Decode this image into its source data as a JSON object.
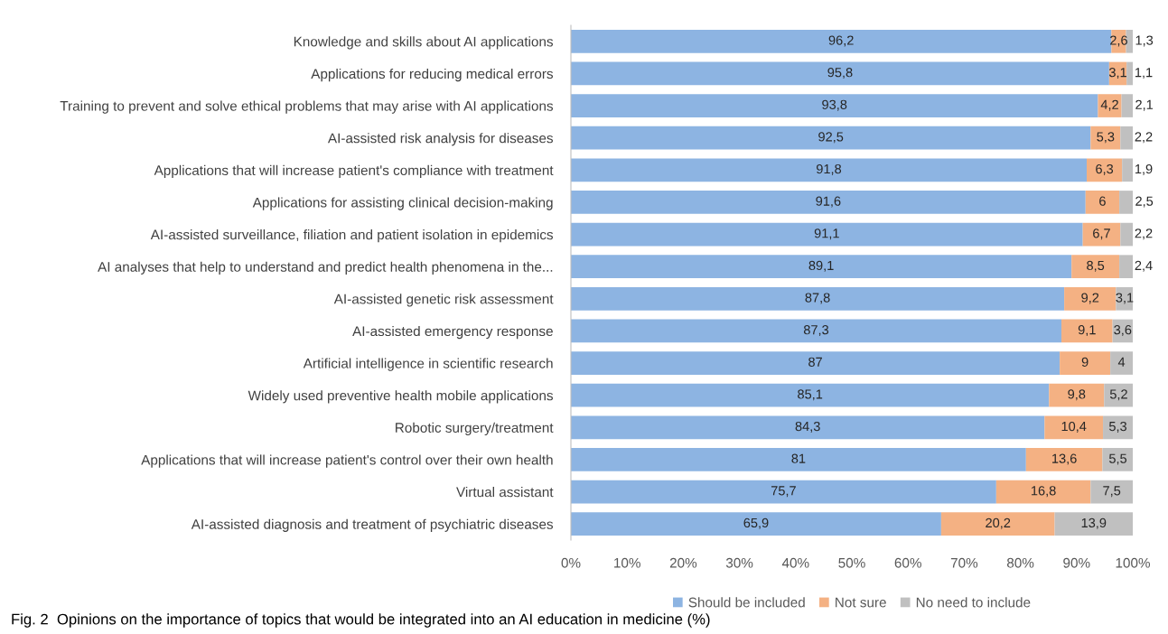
{
  "chart_data": {
    "type": "bar",
    "orientation": "horizontal",
    "stacked": true,
    "categories": [
      "Knowledge and skills about AI applications",
      "Applications for reducing medical errors",
      "Training to prevent and solve ethical problems that may arise with AI applications",
      "AI-assisted risk analysis for diseases",
      "Applications that will increase patient's compliance with treatment",
      "Applications for assisting clinical decision-making",
      "AI-assisted surveillance, filiation and patient isolation in epidemics",
      "AI analyses that help to understand and predict health phenomena in the...",
      "AI-assisted genetic risk assessment",
      "AI-assisted emergency response",
      "Artificial intelligence in scientific research",
      "Widely used preventive health mobile applications",
      "Robotic surgery/treatment",
      "Applications that will increase patient's control over their own health",
      "Virtual assistant",
      "AI-assisted diagnosis and treatment of psychiatric diseases"
    ],
    "series": [
      {
        "name": "Should be included",
        "color": "#8db4e2",
        "values": [
          96.2,
          95.8,
          93.8,
          92.5,
          91.8,
          91.6,
          91.1,
          89.1,
          87.8,
          87.3,
          87,
          85.1,
          84.3,
          81,
          75.7,
          65.9
        ],
        "value_labels": [
          "96,2",
          "95,8",
          "93,8",
          "92,5",
          "91,8",
          "91,6",
          "91,1",
          "89,1",
          "87,8",
          "87,3",
          "87",
          "85,1",
          "84,3",
          "81",
          "75,7",
          "65,9"
        ]
      },
      {
        "name": "Not sure",
        "color": "#f4b183",
        "values": [
          2.6,
          3.1,
          4.2,
          5.3,
          6.3,
          6,
          6.7,
          8.5,
          9.2,
          9.1,
          9,
          9.8,
          10.4,
          13.6,
          16.8,
          20.2
        ],
        "value_labels": [
          "2,6",
          "3,1",
          "4,2",
          "5,3",
          "6,3",
          "6",
          "6,7",
          "8,5",
          "9,2",
          "9,1",
          "9",
          "9,8",
          "10,4",
          "13,6",
          "16,8",
          "20,2"
        ]
      },
      {
        "name": "No need to include",
        "color": "#c0c0c0",
        "values": [
          1.3,
          1.1,
          2.1,
          2.2,
          1.9,
          2.5,
          2.2,
          2.4,
          3.1,
          3.6,
          4,
          5.2,
          5.3,
          5.5,
          7.5,
          13.9
        ],
        "value_labels": [
          "1,3",
          "1,1",
          "2,1",
          "2,2",
          "1,9",
          "2,5",
          "2,2",
          "2,4",
          "3,1",
          "3,6",
          "4",
          "5,2",
          "5,3",
          "5,5",
          "7,5",
          "13,9"
        ]
      }
    ],
    "xlim": [
      0,
      100
    ],
    "xticks": [
      {
        "value": 0,
        "label": "0%"
      },
      {
        "value": 10,
        "label": "10%"
      },
      {
        "value": 20,
        "label": "20%"
      },
      {
        "value": 30,
        "label": "30%"
      },
      {
        "value": 40,
        "label": "40%"
      },
      {
        "value": 50,
        "label": "50%"
      },
      {
        "value": 60,
        "label": "60%"
      },
      {
        "value": 70,
        "label": "70%"
      },
      {
        "value": 80,
        "label": "80%"
      },
      {
        "value": 90,
        "label": "90%"
      },
      {
        "value": 100,
        "label": "100%"
      }
    ],
    "legend": "bottom",
    "grid": false,
    "annotations": [
      "Fig. 2  Opinions on the importance of topics that would be integrated into an AI education in medicine (%)"
    ]
  }
}
